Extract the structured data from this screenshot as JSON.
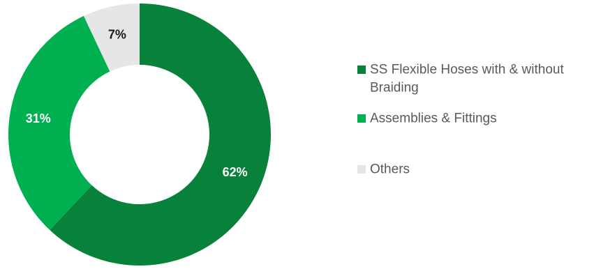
{
  "chart_data": {
    "type": "pie",
    "variant": "donut",
    "legend_position": "right",
    "categories": [
      "SS Flexible Hoses with & without Braiding",
      "Assemblies & Fittings",
      "Others"
    ],
    "values": [
      62,
      31,
      7
    ],
    "data_labels": [
      "62%",
      "31%",
      "7%"
    ],
    "legend_lines": [
      [
        "SS Flexible Hoses with & without",
        "Braiding"
      ],
      [
        "Assemblies & Fittings"
      ],
      [
        "Others"
      ]
    ],
    "colors": [
      "#08813a",
      "#00b050",
      "#e6e6e6"
    ],
    "label_colors": [
      "#ffffff",
      "#ffffff",
      "#1a1a1a"
    ]
  }
}
